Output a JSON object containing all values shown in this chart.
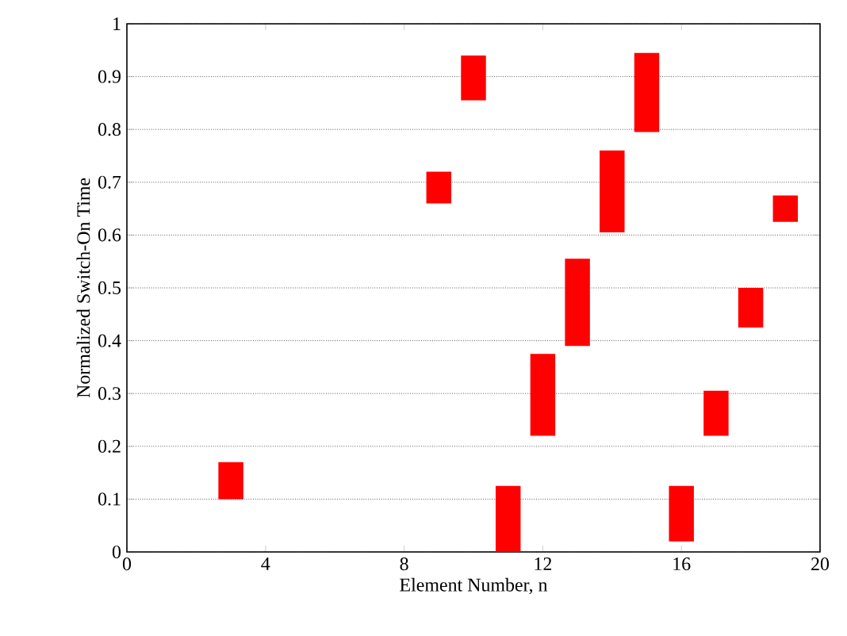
{
  "chart_data": {
    "type": "bar",
    "xlabel": "Element Number, n",
    "ylabel": "Normalized Switch-On Time",
    "x": [
      3,
      9,
      10,
      11,
      12,
      13,
      14,
      15,
      16,
      17,
      18,
      19
    ],
    "base": [
      0.1,
      0.66,
      0.855,
      0,
      0.22,
      0.39,
      0.605,
      0.795,
      0.02,
      0.22,
      0.425,
      0.625
    ],
    "values": [
      0.07,
      0.06,
      0.085,
      0.125,
      0.155,
      0.165,
      0.155,
      0.15,
      0.105,
      0.085,
      0.075,
      0.05
    ],
    "color": "#ff0000",
    "xlim": [
      0,
      20
    ],
    "xticks": [
      0,
      4,
      8,
      12,
      16,
      20
    ],
    "ylim": [
      0,
      1
    ],
    "yticks": [
      0,
      0.1,
      0.2,
      0.3,
      0.4,
      0.5,
      0.6,
      0.7,
      0.8,
      0.9,
      1
    ],
    "grid": "y"
  }
}
